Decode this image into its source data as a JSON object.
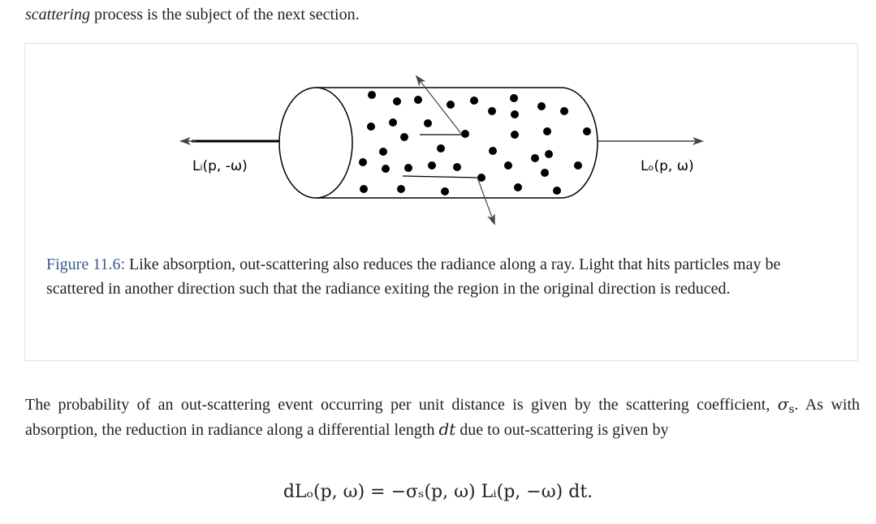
{
  "intro": {
    "italic_word": "scattering",
    "rest": " process is the subject of the next section."
  },
  "figure": {
    "label_left": "Lᵢ(p, -ω)",
    "label_right": "Lₒ(p, ω)",
    "caption_ref": "Figure 11.6:",
    "caption_text": " Like absorption, out-scattering also reduces the radiance along a ray. Light that hits particles may be scattered in another direction such that the radiance exiting the region in the original direction is reduced."
  },
  "paragraph": {
    "part1": "The probability of an out-scattering event occurring per unit distance is given by the scattering coefficient, ",
    "sigma": "σ",
    "sigma_sub": "s",
    "part2": ". As with absorption, the reduction in radiance along a differential length ",
    "dt": "dt",
    "part3": " due to out-scattering is given by"
  },
  "equation": {
    "text": "dLₒ(p, ω) = −σₛ(p, ω) Lᵢ(p, −ω) dt."
  }
}
